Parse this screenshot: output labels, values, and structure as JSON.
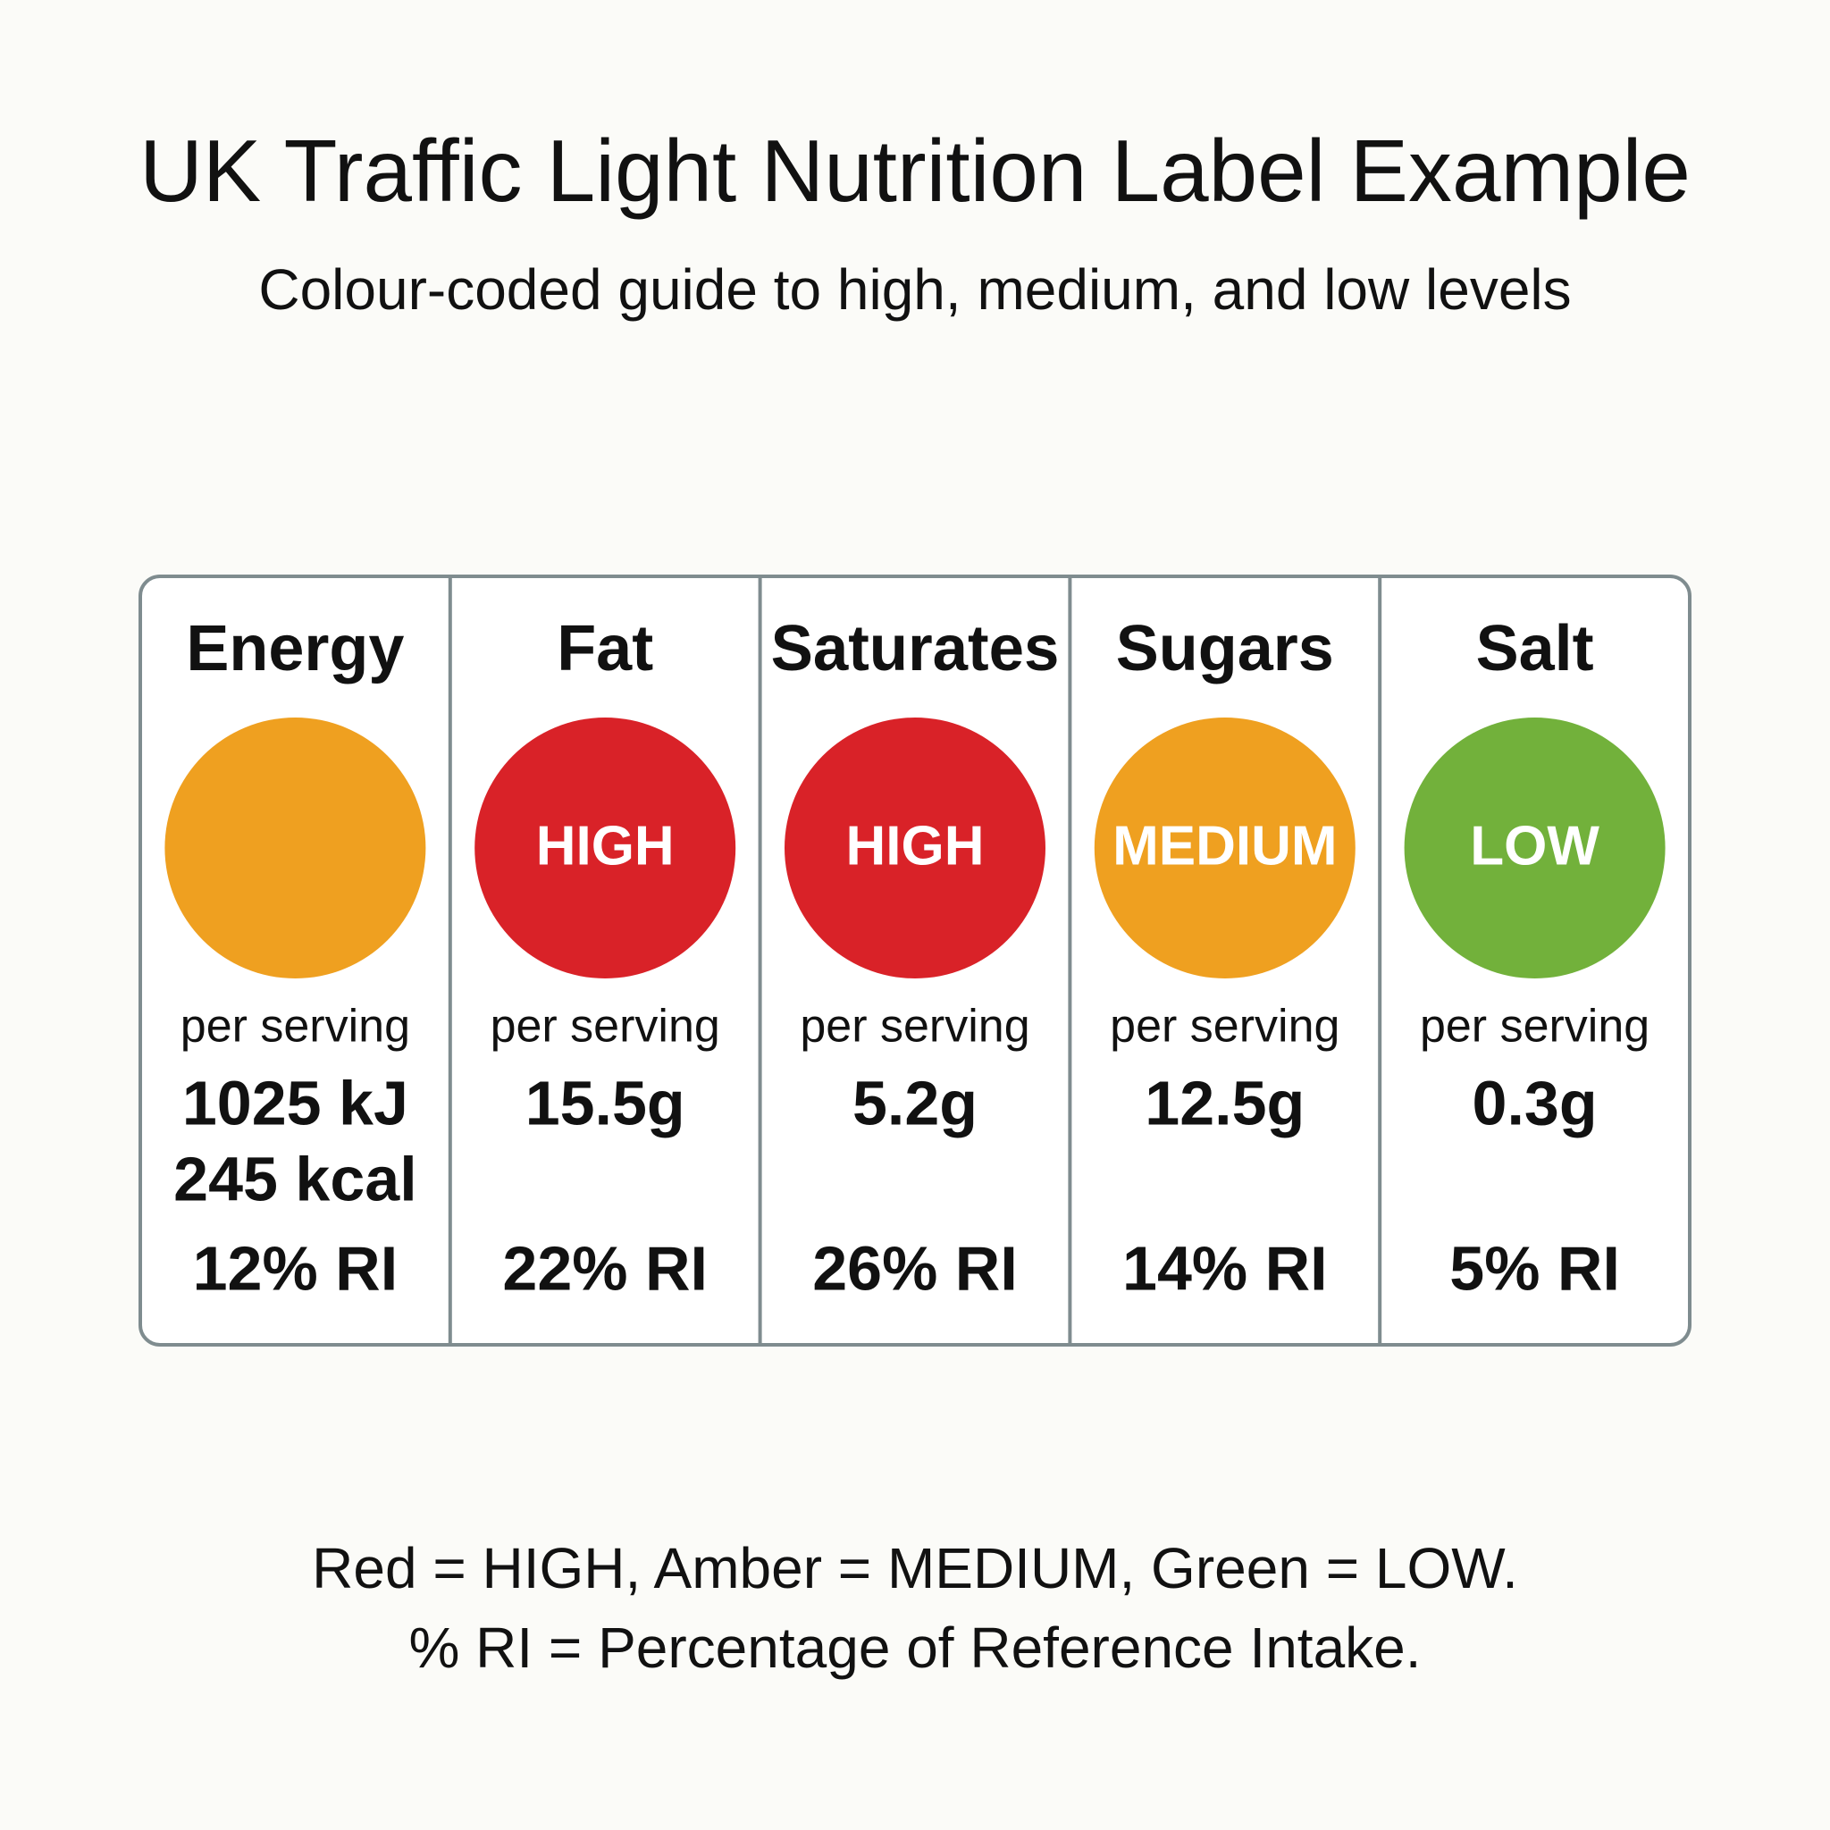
{
  "header": {
    "title": "UK Traffic Light Nutrition Label Example",
    "subtitle": "Colour-coded guide to high, medium, and low levels"
  },
  "label": {
    "columns": [
      {
        "name": "Energy",
        "color": "#efa020",
        "level": null,
        "per": "per serving",
        "amount": [
          "1025 kJ",
          "245 kcal"
        ],
        "ri": "12% RI"
      },
      {
        "name": "Fat",
        "color": "#d92228",
        "level": "HIGH",
        "per": "per serving",
        "amount": [
          "15.5g"
        ],
        "ri": "22% RI"
      },
      {
        "name": "Saturates",
        "color": "#d92228",
        "level": "HIGH",
        "per": "per serving",
        "amount": [
          "5.2g"
        ],
        "ri": "26% RI"
      },
      {
        "name": "Sugars",
        "color": "#efa020",
        "level": "MEDIUM",
        "per": "per serving",
        "amount": [
          "12.5g"
        ],
        "ri": "14% RI"
      },
      {
        "name": "Salt",
        "color": "#72b13b",
        "level": "LOW",
        "per": "per serving",
        "amount": [
          "0.3g"
        ],
        "ri": "5% RI"
      }
    ]
  },
  "footer": {
    "lines": [
      "Red = HIGH, Amber = MEDIUM, Green = LOW.",
      "% RI = Percentage of Reference Intake."
    ]
  }
}
